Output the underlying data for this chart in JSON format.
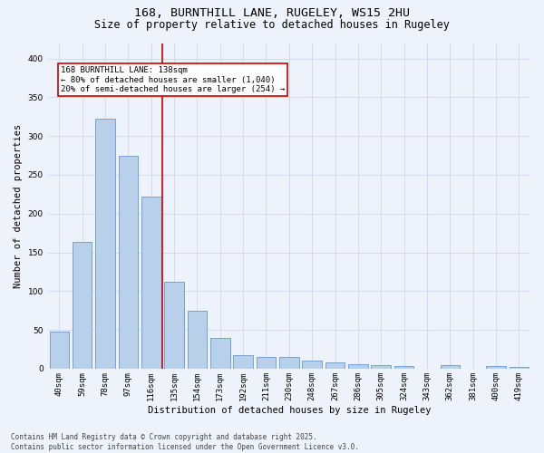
{
  "title1": "168, BURNTHILL LANE, RUGELEY, WS15 2HU",
  "title2": "Size of property relative to detached houses in Rugeley",
  "xlabel": "Distribution of detached houses by size in Rugeley",
  "ylabel": "Number of detached properties",
  "categories": [
    "40sqm",
    "59sqm",
    "78sqm",
    "97sqm",
    "116sqm",
    "135sqm",
    "154sqm",
    "173sqm",
    "192sqm",
    "211sqm",
    "230sqm",
    "248sqm",
    "267sqm",
    "286sqm",
    "305sqm",
    "324sqm",
    "343sqm",
    "362sqm",
    "381sqm",
    "400sqm",
    "419sqm"
  ],
  "values": [
    48,
    163,
    322,
    275,
    222,
    112,
    75,
    40,
    17,
    15,
    15,
    10,
    8,
    6,
    4,
    3,
    0,
    4,
    0,
    3,
    2
  ],
  "bar_color": "#b8d0ea",
  "bar_edge_color": "#6699cc",
  "highlight_line_color": "#cc0000",
  "ylim": [
    0,
    420
  ],
  "yticks": [
    0,
    50,
    100,
    150,
    200,
    250,
    300,
    350,
    400
  ],
  "annotation_text": "168 BURNTHILL LANE: 138sqm\n← 80% of detached houses are smaller (1,040)\n20% of semi-detached houses are larger (254) →",
  "annotation_box_color": "#cc0000",
  "footnote": "Contains HM Land Registry data © Crown copyright and database right 2025.\nContains public sector information licensed under the Open Government Licence v3.0.",
  "bg_color": "#eef2fb",
  "plot_bg_color": "#eef2fb",
  "title_fontsize": 9.5,
  "subtitle_fontsize": 8.5,
  "axis_label_fontsize": 7.5,
  "tick_fontsize": 6.5,
  "annotation_fontsize": 6.5,
  "footnote_fontsize": 5.5,
  "grid_color": "#d0daf0"
}
